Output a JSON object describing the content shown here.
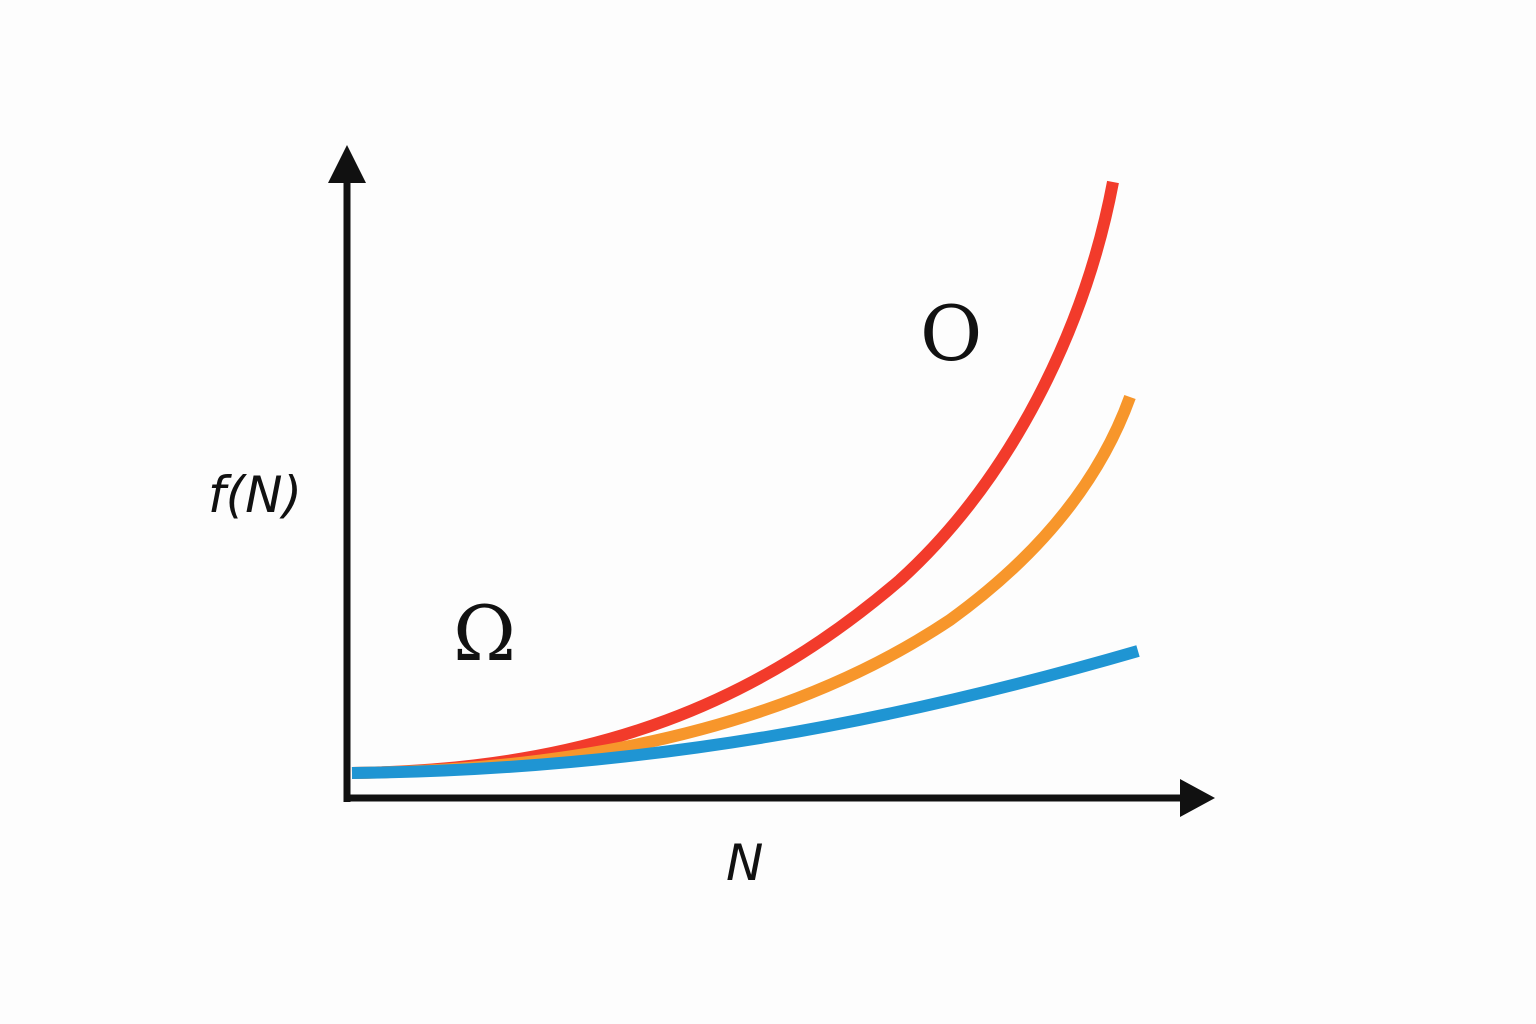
{
  "diagram": {
    "y_axis_label": "f(N)",
    "x_axis_label": "N",
    "upper_bound_label": "O",
    "lower_bound_label": "Ω"
  },
  "curves": [
    {
      "name": "upper-bound-curve",
      "color": "#f23b2b"
    },
    {
      "name": "middle-curve",
      "color": "#f7962b"
    },
    {
      "name": "lower-bound-curve",
      "color": "#1f95d3"
    }
  ],
  "colors": {
    "axis": "#111111",
    "background": "#fdfdfd"
  }
}
